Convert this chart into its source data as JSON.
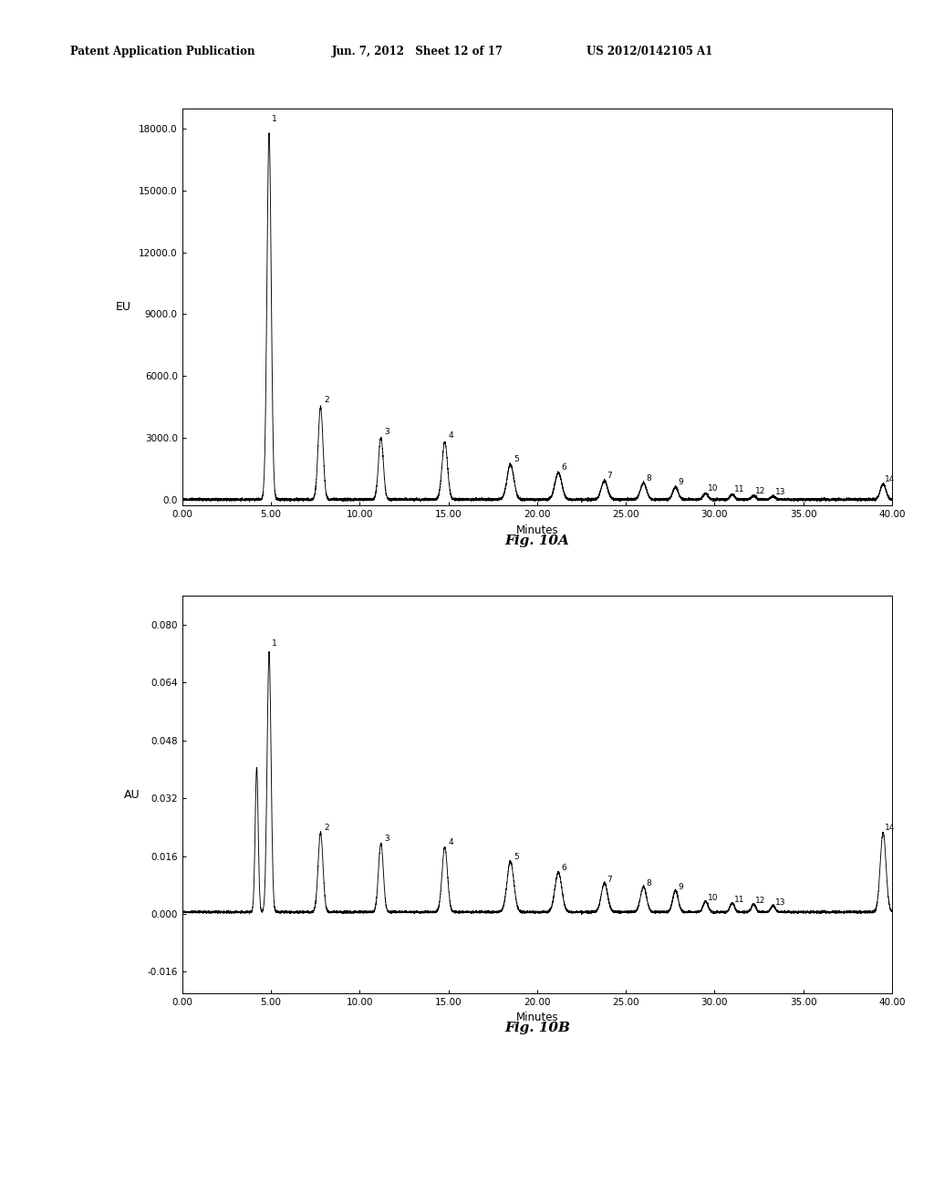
{
  "header_left": "Patent Application Publication",
  "header_mid": "Jun. 7, 2012   Sheet 12 of 17",
  "header_right": "US 2012/0142105 A1",
  "fig_a_label": "Fig. 10A",
  "fig_b_label": "Fig. 10B",
  "fig_a_ylabel": "EU",
  "fig_b_ylabel": "AU",
  "xlabel": "Minutes",
  "fig_a_yticks": [
    0.0,
    3000.0,
    6000.0,
    9000.0,
    12000.0,
    15000.0,
    18000.0
  ],
  "fig_a_ytick_labels": [
    "0.0",
    "3000.0",
    "6000.0",
    "9000.0",
    "12000.0",
    "15000.0",
    "18000.0"
  ],
  "fig_a_ylim": [
    -300,
    19000
  ],
  "fig_b_yticks": [
    -0.016,
    0.0,
    0.016,
    0.032,
    0.048,
    0.064,
    0.08
  ],
  "fig_b_ytick_labels": [
    "-0.016",
    "0.000",
    "0.016",
    "0.032",
    "0.048",
    "0.064",
    "0.080"
  ],
  "fig_b_ylim": [
    -0.022,
    0.088
  ],
  "xticks": [
    0.0,
    5.0,
    10.0,
    15.0,
    20.0,
    25.0,
    30.0,
    35.0,
    40.0
  ],
  "xtick_labels": [
    "0.00",
    "5.00",
    "10.00",
    "15.00",
    "20.00",
    "25.00",
    "30.00",
    "35.00",
    "40.00"
  ],
  "xlim": [
    0,
    40
  ],
  "background_color": "#ffffff",
  "line_color": "#000000",
  "peak_positions_a": [
    4.9,
    7.8,
    11.2,
    14.8,
    18.5,
    21.2,
    23.8,
    26.0,
    27.8,
    29.5,
    31.0,
    32.2,
    33.3,
    39.5
  ],
  "peak_heights_a": [
    17800,
    4500,
    3000,
    2800,
    1700,
    1300,
    900,
    800,
    600,
    300,
    250,
    190,
    160,
    750
  ],
  "peak_widths_a": [
    0.28,
    0.32,
    0.32,
    0.36,
    0.45,
    0.45,
    0.42,
    0.4,
    0.36,
    0.32,
    0.3,
    0.28,
    0.28,
    0.38
  ],
  "peak_positions_b": [
    4.2,
    4.9,
    7.8,
    11.2,
    14.8,
    18.5,
    21.2,
    23.8,
    26.0,
    27.8,
    29.5,
    31.0,
    32.2,
    33.3,
    39.5
  ],
  "peak_heights_b": [
    0.04,
    0.072,
    0.022,
    0.019,
    0.018,
    0.014,
    0.011,
    0.008,
    0.007,
    0.006,
    0.003,
    0.0025,
    0.0022,
    0.0018,
    0.022
  ],
  "peak_widths_b": [
    0.2,
    0.26,
    0.32,
    0.32,
    0.36,
    0.45,
    0.45,
    0.42,
    0.4,
    0.36,
    0.32,
    0.3,
    0.28,
    0.28,
    0.38
  ],
  "peak_labels_a": [
    "1",
    "2",
    "3",
    "4",
    "5",
    "6",
    "7",
    "8",
    "9",
    "10",
    "11",
    "12",
    "13",
    "14"
  ],
  "peak_label_positions_a": [
    4.9,
    7.8,
    11.2,
    14.8,
    18.5,
    21.2,
    23.8,
    26.0,
    27.8,
    29.5,
    31.0,
    32.2,
    33.3,
    39.5
  ],
  "peak_label_heights_a": [
    17800,
    4500,
    3000,
    2800,
    1700,
    1300,
    900,
    800,
    600,
    300,
    250,
    190,
    160,
    750
  ],
  "peak_labels_b": [
    "1",
    "2",
    "3",
    "4",
    "5",
    "6",
    "7",
    "8",
    "9",
    "10",
    "11",
    "12",
    "13",
    "14"
  ],
  "peak_label_positions_b": [
    4.9,
    7.8,
    11.2,
    14.8,
    18.5,
    21.2,
    23.8,
    26.0,
    27.8,
    29.5,
    31.0,
    32.2,
    33.3,
    39.5
  ],
  "peak_label_heights_b": [
    0.072,
    0.022,
    0.019,
    0.018,
    0.014,
    0.011,
    0.008,
    0.007,
    0.006,
    0.003,
    0.0025,
    0.0022,
    0.0018,
    0.022
  ],
  "noise_amplitude_a": 30,
  "noise_amplitude_b": 0.00015,
  "baseline_b": 0.0005
}
